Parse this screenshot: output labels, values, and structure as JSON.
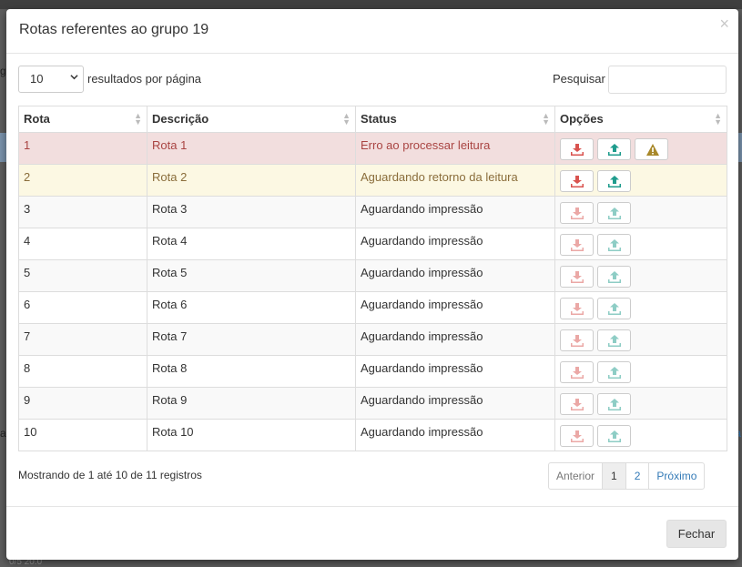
{
  "background": {
    "edge_left_1": "g",
    "edge_left_2": "ar",
    "edge_right_1": "a",
    "edge_bottom": "0/5 20.0"
  },
  "modal": {
    "title": "Rotas referentes ao grupo 19",
    "close_icon": "×"
  },
  "controls": {
    "length_value": "10",
    "length_label": "resultados por página",
    "search_label": "Pesquisar",
    "search_value": "",
    "chevron_icon": "chevron-down-icon"
  },
  "table": {
    "headers": [
      "Rota",
      "Descrição",
      "Status",
      "Opções"
    ],
    "rows": [
      {
        "rota": "1",
        "descricao": "Rota 1",
        "status": "Erro ao processar leitura"
      },
      {
        "rota": "2",
        "descricao": "Rota 2",
        "status": "Aguardando retorno da leitura"
      },
      {
        "rota": "3",
        "descricao": "Rota 3",
        "status": "Aguardando impressão"
      },
      {
        "rota": "4",
        "descricao": "Rota 4",
        "status": "Aguardando impressão"
      },
      {
        "rota": "5",
        "descricao": "Rota 5",
        "status": "Aguardando impressão"
      },
      {
        "rota": "6",
        "descricao": "Rota 6",
        "status": "Aguardando impressão"
      },
      {
        "rota": "7",
        "descricao": "Rota 7",
        "status": "Aguardando impressão"
      },
      {
        "rota": "8",
        "descricao": "Rota 8",
        "status": "Aguardando impressão"
      },
      {
        "rota": "9",
        "descricao": "Rota 9",
        "status": "Aguardando impressão"
      },
      {
        "rota": "10",
        "descricao": "Rota 10",
        "status": "Aguardando impressão"
      }
    ],
    "icons": {
      "download": "download-icon",
      "upload": "upload-icon",
      "warning": "warning-icon"
    }
  },
  "info": "Mostrando de 1 até 10 de 11 registros",
  "pagination": {
    "previous": "Anterior",
    "pages": [
      "1",
      "2"
    ],
    "next": "Próximo"
  },
  "footer": {
    "close_label": "Fechar"
  },
  "colors": {
    "danger_row": "#f2dede",
    "warning_row": "#fcf8e3",
    "download_icon": "#d9534f",
    "upload_icon": "#1f9c8d",
    "warning_icon": "#a8882a",
    "link": "#337ab7"
  }
}
